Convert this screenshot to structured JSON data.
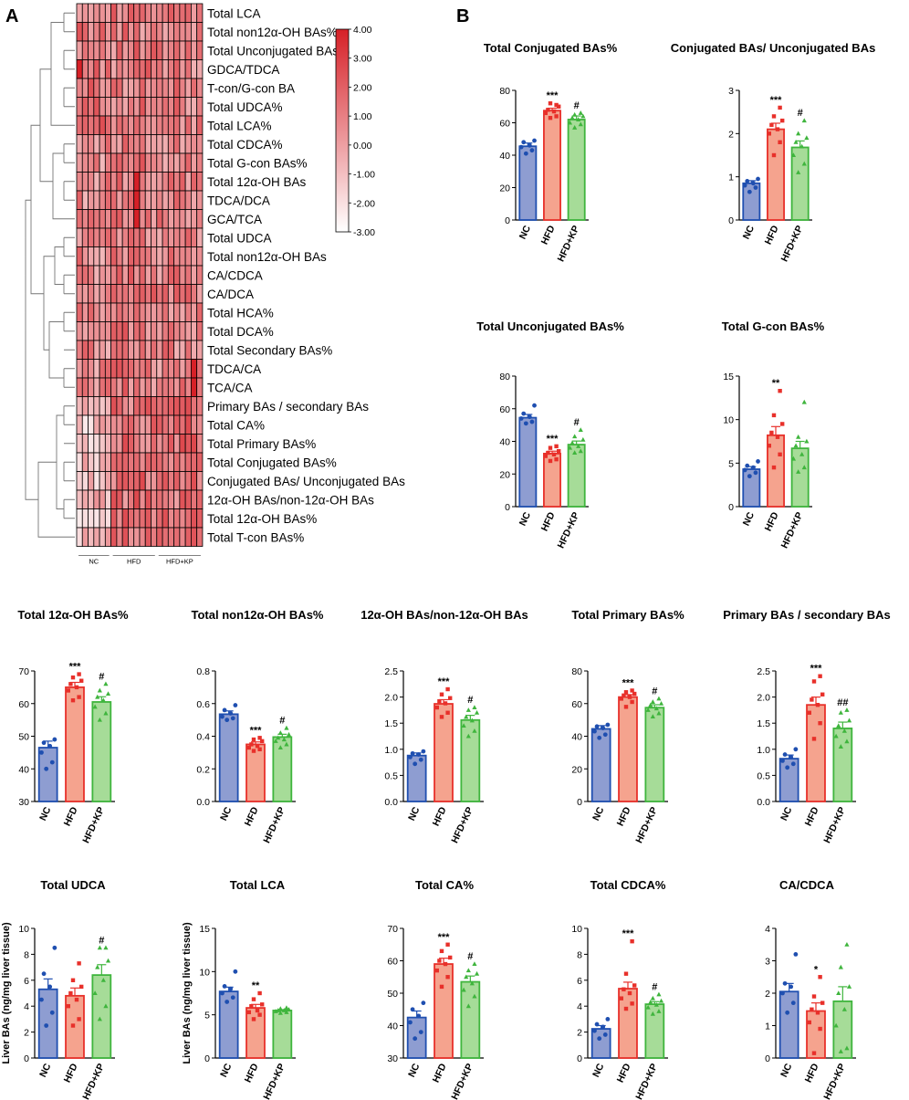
{
  "panels": {
    "a": "A",
    "b": "B"
  },
  "colors": {
    "NC": "#1f4fb0",
    "HFD": "#e8302a",
    "HFD+KP": "#3fb53d",
    "NC_fill": "#8e9dd1",
    "HFD_fill": "#f5a38e",
    "HFD+KP_fill": "#a6dc98",
    "heat_high": "#d62027",
    "heat_low": "#ffffff"
  },
  "heatmap": {
    "rows": [
      "Total LCA",
      "Total non12α-OH BAs%",
      "Total Unconjugated BAs%",
      "GDCA/TDCA",
      "T-con/G-con BA",
      "Total UDCA%",
      "Total LCA%",
      "Total CDCA%",
      "Total G-con BAs%",
      "Total 12α-OH BAs",
      "TDCA/DCA",
      "GCA/TCA",
      "Total UDCA",
      "Total non12α-OH BAs",
      "CA/CDCA",
      "CA/DCA",
      "Total HCA%",
      "Total DCA%",
      "Total Secondary BAs%",
      "TDCA/CA",
      "TCA/CA",
      "Primary BAs / secondary BAs",
      "Total CA%",
      "Total Primary BAs%",
      "Total Conjugated BAs%",
      "Conjugated BAs/ Unconjugated BAs",
      "12α-OH BAs/non-12α-OH BAs",
      "Total 12α-OH BAs%",
      "Total T-con BAs%"
    ],
    "groups": [
      "NC",
      "HFD",
      "HFD+KP"
    ],
    "group_sizes": [
      6,
      8,
      8
    ],
    "colorbar_ticks": [
      "4.00",
      "3.00",
      "2.00",
      "1.00",
      "0.00",
      "-1.00",
      "-2.00",
      "-3.00"
    ],
    "colorbar_range": [
      -3,
      4
    ]
  },
  "chart_data": [
    {
      "type": "bar",
      "title": "Total Conjugated BAs%",
      "categories": [
        "NC",
        "HFD",
        "HFD+KP"
      ],
      "values": [
        45.5,
        67.5,
        62
      ],
      "errors": [
        2,
        1.5,
        2.2
      ],
      "ylim": [
        0,
        80
      ],
      "yticks": [
        "0",
        "20",
        "40",
        "60",
        "80"
      ],
      "ylabel": "",
      "significance": [
        "",
        "***",
        "#"
      ],
      "points": [
        [
          41,
          43,
          45,
          46,
          48,
          49
        ],
        [
          63,
          64,
          66,
          67,
          68,
          70,
          72,
          71
        ],
        [
          57,
          59,
          60,
          62,
          63,
          64,
          65,
          66
        ]
      ]
    },
    {
      "type": "bar",
      "title": "Conjugated BAs/ Unconjugated BAs",
      "categories": [
        "NC",
        "HFD",
        "HFD+KP"
      ],
      "values": [
        0.85,
        2.1,
        1.68
      ],
      "errors": [
        0.06,
        0.14,
        0.15
      ],
      "ylim": [
        0,
        3
      ],
      "yticks": [
        "0",
        "1",
        "2",
        "3"
      ],
      "ylabel": "",
      "significance": [
        "",
        "***",
        "#"
      ],
      "points": [
        [
          0.65,
          0.75,
          0.8,
          0.85,
          0.9,
          0.95
        ],
        [
          1.5,
          1.8,
          2.0,
          2.1,
          2.2,
          2.3,
          2.4,
          2.6
        ],
        [
          1.1,
          1.3,
          1.5,
          1.7,
          1.8,
          1.9,
          2.0,
          2.3
        ]
      ]
    },
    {
      "type": "bar",
      "title": "Total Unconjugated BAs%",
      "categories": [
        "NC",
        "HFD",
        "HFD+KP"
      ],
      "values": [
        54.5,
        32.5,
        38
      ],
      "errors": [
        2,
        1.5,
        2.2
      ],
      "ylim": [
        0,
        80
      ],
      "yticks": [
        "0",
        "20",
        "40",
        "60",
        "80"
      ],
      "ylabel": "",
      "significance": [
        "",
        "***",
        "#"
      ],
      "points": [
        [
          51,
          52,
          54,
          55,
          57,
          62
        ],
        [
          28,
          29,
          31,
          32,
          33,
          34,
          36,
          37
        ],
        [
          33,
          34,
          36,
          37,
          39,
          41,
          43,
          47
        ]
      ]
    },
    {
      "type": "bar",
      "title": "Total G-con BAs%",
      "categories": [
        "NC",
        "HFD",
        "HFD+KP"
      ],
      "values": [
        4.3,
        8.2,
        6.7
      ],
      "errors": [
        0.3,
        1.0,
        0.8
      ],
      "ylim": [
        0,
        15
      ],
      "yticks": [
        "0",
        "5",
        "10",
        "15"
      ],
      "ylabel": "",
      "significance": [
        "",
        "**",
        ""
      ],
      "points": [
        [
          3.5,
          3.9,
          4.2,
          4.5,
          4.7,
          5.2
        ],
        [
          4.5,
          6,
          7,
          8,
          8.5,
          9.5,
          10.5,
          13.3
        ],
        [
          4,
          4.5,
          5.5,
          6,
          7,
          7.5,
          8,
          12
        ]
      ]
    },
    {
      "type": "bar",
      "title": "Total 12α-OH BAs%",
      "categories": [
        "NC",
        "HFD",
        "HFD+KP"
      ],
      "values": [
        46.5,
        65,
        60.5
      ],
      "errors": [
        2,
        1.5,
        1.6
      ],
      "ylim": [
        30,
        70
      ],
      "yticks": [
        "30",
        "40",
        "50",
        "60",
        "70"
      ],
      "ylabel": "",
      "significance": [
        "",
        "***",
        "#"
      ],
      "points": [
        [
          40,
          42,
          45,
          47,
          48,
          49
        ],
        [
          61,
          62,
          64,
          65,
          66,
          67,
          68,
          69
        ],
        [
          55,
          57,
          59,
          61,
          62,
          63,
          64,
          66
        ]
      ]
    },
    {
      "type": "bar",
      "title": "Total non12α-OH BAs%",
      "categories": [
        "NC",
        "HFD",
        "HFD+KP"
      ],
      "values": [
        0.535,
        0.35,
        0.395
      ],
      "errors": [
        0.02,
        0.015,
        0.017
      ],
      "ylim": [
        0,
        0.8
      ],
      "yticks": [
        "0.0",
        "0.2",
        "0.4",
        "0.6",
        "0.8"
      ],
      "ylabel": "",
      "significance": [
        "",
        "***",
        "#"
      ],
      "points": [
        [
          0.5,
          0.51,
          0.52,
          0.54,
          0.56,
          0.59
        ],
        [
          0.31,
          0.32,
          0.33,
          0.34,
          0.35,
          0.37,
          0.38,
          0.39
        ],
        [
          0.33,
          0.35,
          0.37,
          0.38,
          0.39,
          0.41,
          0.42,
          0.45
        ]
      ]
    },
    {
      "type": "bar",
      "title": "12α-OH BAs/non-12α-OH BAs",
      "categories": [
        "NC",
        "HFD",
        "HFD+KP"
      ],
      "values": [
        0.88,
        1.87,
        1.56
      ],
      "errors": [
        0.05,
        0.08,
        0.09
      ],
      "ylim": [
        0,
        2.5
      ],
      "yticks": [
        "0.0",
        "0.5",
        "1.0",
        "1.5",
        "2.0",
        "2.5"
      ],
      "ylabel": "",
      "significance": [
        "",
        "***",
        "#"
      ],
      "points": [
        [
          0.72,
          0.8,
          0.85,
          0.9,
          0.92,
          0.96
        ],
        [
          1.62,
          1.7,
          1.8,
          1.88,
          1.92,
          1.98,
          2.05,
          2.15
        ],
        [
          1.25,
          1.35,
          1.45,
          1.55,
          1.62,
          1.7,
          1.75,
          1.8
        ]
      ]
    },
    {
      "type": "bar",
      "title": "Total Primary BAs%",
      "categories": [
        "NC",
        "HFD",
        "HFD+KP"
      ],
      "values": [
        44.5,
        64,
        57.5
      ],
      "errors": [
        2,
        1.5,
        1.8
      ],
      "ylim": [
        0,
        80
      ],
      "yticks": [
        "0",
        "20",
        "40",
        "60",
        "80"
      ],
      "ylabel": "",
      "significance": [
        "",
        "***",
        "#"
      ],
      "points": [
        [
          39,
          41,
          43,
          45,
          46,
          47
        ],
        [
          58,
          61,
          63,
          64,
          65,
          66,
          67,
          68
        ],
        [
          52,
          54,
          56,
          57,
          59,
          60,
          61,
          63
        ]
      ]
    },
    {
      "type": "bar",
      "title": "Primary BAs / secondary BAs",
      "categories": [
        "NC",
        "HFD",
        "HFD+KP"
      ],
      "values": [
        0.82,
        1.85,
        1.4
      ],
      "errors": [
        0.07,
        0.15,
        0.12
      ],
      "ylim": [
        0,
        2.5
      ],
      "yticks": [
        "0.0",
        "0.5",
        "1.0",
        "1.5",
        "2.0",
        "2.5"
      ],
      "ylabel": "",
      "significance": [
        "",
        "***",
        "##"
      ],
      "points": [
        [
          0.65,
          0.72,
          0.78,
          0.85,
          0.9,
          1.0
        ],
        [
          1.2,
          1.5,
          1.7,
          1.85,
          1.95,
          2.05,
          2.3,
          2.4
        ],
        [
          1.05,
          1.15,
          1.25,
          1.35,
          1.45,
          1.55,
          1.7,
          1.75
        ]
      ]
    },
    {
      "type": "bar",
      "title": "Total UDCA",
      "categories": [
        "NC",
        "HFD",
        "HFD+KP"
      ],
      "values": [
        5.3,
        4.8,
        6.4
      ],
      "errors": [
        0.8,
        0.6,
        0.8
      ],
      "ylim": [
        0,
        10
      ],
      "yticks": [
        "0",
        "2",
        "4",
        "6",
        "8",
        "10"
      ],
      "ylabel": "Liver BAs (ng/mg liver tissue)",
      "significance": [
        "",
        "",
        "#"
      ],
      "points": [
        [
          2.5,
          3.5,
          4.5,
          5.5,
          6.5,
          8.5
        ],
        [
          2.5,
          3,
          4,
          4.5,
          5,
          5.5,
          6,
          7.3
        ],
        [
          3,
          4,
          5,
          6,
          7,
          7.5,
          8.5,
          8.5
        ]
      ]
    },
    {
      "type": "bar",
      "title": "Total LCA",
      "categories": [
        "NC",
        "HFD",
        "HFD+KP"
      ],
      "values": [
        7.7,
        5.8,
        5.5
      ],
      "errors": [
        0.5,
        0.4,
        0.1
      ],
      "ylim": [
        0,
        15
      ],
      "yticks": [
        "0",
        "5",
        "10",
        "15"
      ],
      "ylabel": "Liver BAs (ng/mg liver tissue)",
      "significance": [
        "",
        "**",
        ""
      ],
      "points": [
        [
          6.5,
          7,
          7.5,
          8,
          8.3,
          10
        ],
        [
          4.5,
          5,
          5.3,
          5.5,
          6,
          6.2,
          6.8,
          7.5
        ],
        [
          5.2,
          5.3,
          5.4,
          5.5,
          5.5,
          5.6,
          5.7,
          5.8
        ]
      ]
    },
    {
      "type": "bar",
      "title": "Total CA%",
      "categories": [
        "NC",
        "HFD",
        "HFD+KP"
      ],
      "values": [
        42.5,
        59,
        53.5
      ],
      "errors": [
        2,
        1.8,
        1.8
      ],
      "ylim": [
        30,
        70
      ],
      "yticks": [
        "30",
        "40",
        "50",
        "60",
        "70"
      ],
      "ylabel": "",
      "significance": [
        "",
        "***",
        "#"
      ],
      "points": [
        [
          36,
          38,
          41,
          43,
          45,
          47
        ],
        [
          52,
          55,
          57,
          59,
          60,
          61,
          63,
          65
        ],
        [
          46,
          49,
          51,
          53,
          55,
          56,
          57,
          59
        ]
      ]
    },
    {
      "type": "bar",
      "title": "Total CDCA%",
      "categories": [
        "NC",
        "HFD",
        "HFD+KP"
      ],
      "values": [
        2.25,
        5.35,
        4.15
      ],
      "errors": [
        0.25,
        0.5,
        0.2
      ],
      "ylim": [
        0,
        10
      ],
      "yticks": [
        "0",
        "2",
        "4",
        "6",
        "8",
        "10"
      ],
      "ylabel": "",
      "significance": [
        "",
        "***",
        "#"
      ],
      "points": [
        [
          1.5,
          1.8,
          2.1,
          2.4,
          2.6,
          3
        ],
        [
          3.8,
          4.2,
          4.6,
          5,
          5.3,
          5.6,
          6.5,
          9
        ],
        [
          3.4,
          3.6,
          3.9,
          4.1,
          4.3,
          4.4,
          4.6,
          4.9
        ]
      ]
    },
    {
      "type": "bar",
      "title": "CA/CDCA",
      "categories": [
        "NC",
        "HFD",
        "HFD+KP"
      ],
      "values": [
        2.05,
        1.45,
        1.75
      ],
      "errors": [
        0.25,
        0.25,
        0.45
      ],
      "ylim": [
        0,
        4
      ],
      "yticks": [
        "0",
        "1",
        "2",
        "3",
        "4"
      ],
      "ylabel": "",
      "significance": [
        "",
        "*",
        ""
      ],
      "points": [
        [
          1.4,
          1.7,
          2.0,
          2.2,
          2.3,
          3.2
        ],
        [
          0.15,
          0.9,
          1.1,
          1.4,
          1.5,
          1.7,
          1.9,
          2.5
        ],
        [
          0.2,
          0.3,
          1.0,
          1.5,
          2.0,
          2.2,
          2.8,
          3.5
        ]
      ]
    }
  ]
}
